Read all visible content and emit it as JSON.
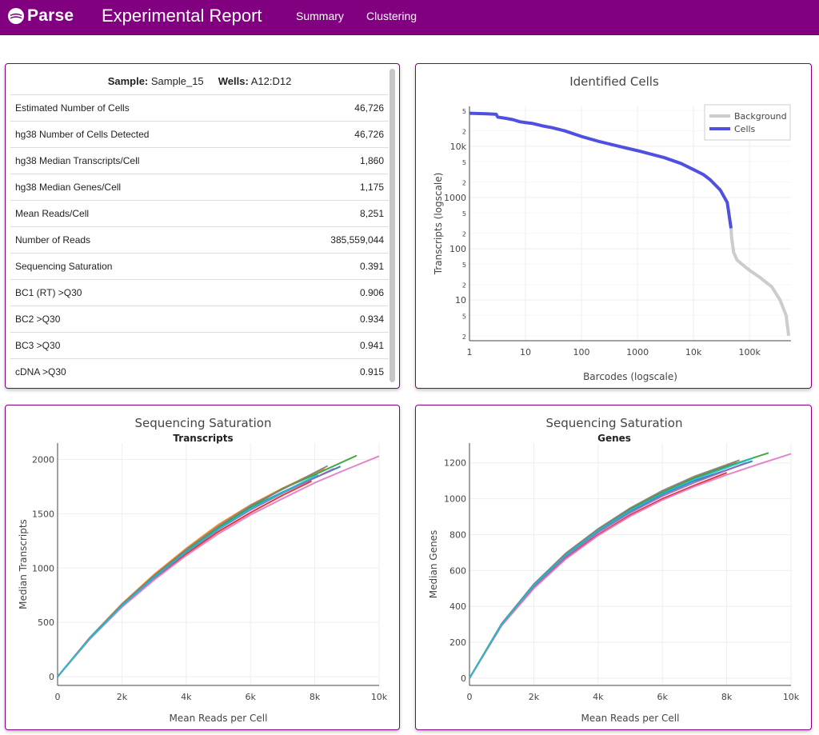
{
  "nav": {
    "logo_text": "Parse",
    "title": "Experimental Report",
    "links": [
      "Summary",
      "Clustering"
    ]
  },
  "summary": {
    "sample_label": "Sample:",
    "sample_value": "Sample_15",
    "wells_label": "Wells:",
    "wells_value": "A12:D12",
    "rows": [
      {
        "label": "Estimated Number of Cells",
        "value": "46,726"
      },
      {
        "label": "hg38 Number of Cells Detected",
        "value": "46,726"
      },
      {
        "label": "hg38 Median Transcripts/Cell",
        "value": "1,860"
      },
      {
        "label": "hg38 Median Genes/Cell",
        "value": "1,175"
      },
      {
        "label": "Mean Reads/Cell",
        "value": "8,251"
      },
      {
        "label": "Number of Reads",
        "value": "385,559,044"
      },
      {
        "label": "Sequencing Saturation",
        "value": "0.391"
      },
      {
        "label": "BC1 (RT) >Q30",
        "value": "0.906"
      },
      {
        "label": "BC2 >Q30",
        "value": "0.934"
      },
      {
        "label": "BC3 >Q30",
        "value": "0.941"
      },
      {
        "label": "cDNA >Q30",
        "value": "0.915"
      }
    ]
  },
  "chart_data": [
    {
      "type": "line",
      "title": "Identified Cells",
      "xlabel": "Barcodes (logscale)",
      "ylabel": "Transcripts (logscale)",
      "x_scale": "log",
      "y_scale": "log",
      "x_ticks": [
        "1",
        "10",
        "100",
        "1000",
        "10k",
        "100k"
      ],
      "y_ticks": [
        "2",
        "5",
        "10",
        "2",
        "5",
        "100",
        "2",
        "5",
        "1000",
        "2",
        "5",
        "10k",
        "2",
        "5"
      ],
      "legend": [
        "Background",
        "Cells"
      ],
      "legend_position": "top-right",
      "series": [
        {
          "name": "Cells",
          "color": "#5050e0",
          "x": [
            1,
            2,
            3,
            3.2,
            4.5,
            6,
            8,
            10,
            13,
            20,
            30,
            50,
            100,
            200,
            500,
            1000,
            3000,
            6000,
            10000,
            15000,
            20000,
            30000,
            40000,
            46726
          ],
          "y": [
            44000,
            43000,
            42000,
            37000,
            35000,
            33000,
            30000,
            29000,
            28000,
            25000,
            23000,
            20000,
            15500,
            12500,
            9800,
            8200,
            6000,
            4600,
            3500,
            2800,
            2200,
            1400,
            800,
            250
          ]
        },
        {
          "name": "Background",
          "color": "#cccccc",
          "x": [
            46726,
            48000,
            52000,
            60000,
            80000,
            100000,
            150000,
            250000,
            350000,
            450000,
            500000
          ],
          "y": [
            250,
            160,
            85,
            60,
            46,
            38,
            28,
            18,
            10,
            5,
            2
          ]
        }
      ]
    },
    {
      "type": "line",
      "title": "Sequencing Saturation",
      "subtitle": "Transcripts",
      "xlabel": "Mean Reads per Cell",
      "ylabel": "Median Transcripts",
      "x_ticks": [
        "0",
        "2k",
        "4k",
        "6k",
        "8k",
        "10k"
      ],
      "y_ticks": [
        "0",
        "500",
        "1000",
        "1500",
        "2000"
      ],
      "xlim": [
        0,
        10000
      ],
      "ylim": [
        -80,
        2150
      ],
      "series": [
        {
          "color": "#1f77b4",
          "x": [
            0,
            1000,
            2000,
            3000,
            4000,
            5000,
            6000,
            7000,
            8000,
            8800
          ],
          "y": [
            0,
            355,
            655,
            915,
            1150,
            1365,
            1555,
            1700,
            1830,
            1935
          ]
        },
        {
          "color": "#ff7f0e",
          "x": [
            0,
            1000,
            2000,
            3000,
            4000,
            5000,
            6000,
            7000,
            8000,
            8300
          ],
          "y": [
            0,
            360,
            670,
            940,
            1180,
            1400,
            1580,
            1735,
            1875,
            1915
          ]
        },
        {
          "color": "#2ca02c",
          "x": [
            0,
            1000,
            2000,
            3000,
            4000,
            5000,
            6000,
            7000,
            8000,
            9300
          ],
          "y": [
            0,
            355,
            660,
            925,
            1160,
            1375,
            1560,
            1730,
            1860,
            2035
          ]
        },
        {
          "color": "#d62728",
          "x": [
            0,
            1000,
            2000,
            3000,
            4000,
            5000,
            6000,
            7000,
            7900
          ],
          "y": [
            0,
            350,
            650,
            905,
            1130,
            1335,
            1510,
            1670,
            1800
          ]
        },
        {
          "color": "#9467bd",
          "x": [
            0,
            1000,
            2000,
            3000,
            4000,
            5000,
            6000,
            7000,
            8600
          ],
          "y": [
            0,
            352,
            652,
            910,
            1145,
            1355,
            1535,
            1690,
            1915
          ]
        },
        {
          "color": "#7f7f7f",
          "x": [
            0,
            1000,
            2000,
            3000,
            4000,
            5000,
            6000,
            7000,
            8400
          ],
          "y": [
            0,
            358,
            665,
            930,
            1170,
            1385,
            1575,
            1725,
            1940
          ]
        },
        {
          "color": "#e377c2",
          "x": [
            0,
            1000,
            2000,
            3000,
            4000,
            5000,
            6000,
            7000,
            8000,
            9000,
            10000
          ],
          "y": [
            0,
            345,
            640,
            890,
            1115,
            1315,
            1490,
            1640,
            1785,
            1910,
            2030
          ]
        },
        {
          "color": "#17becf",
          "x": [
            0,
            1000,
            2000,
            3000,
            4000,
            5000,
            6000,
            7000,
            8100
          ],
          "y": [
            0,
            353,
            655,
            913,
            1148,
            1360,
            1548,
            1697,
            1860
          ]
        }
      ]
    },
    {
      "type": "line",
      "title": "Sequencing Saturation",
      "subtitle": "Genes",
      "xlabel": "Mean Reads per Cell",
      "ylabel": "Median Genes",
      "x_ticks": [
        "0",
        "2k",
        "4k",
        "6k",
        "8k",
        "10k"
      ],
      "y_ticks": [
        "0",
        "200",
        "400",
        "600",
        "800",
        "1000",
        "1200"
      ],
      "xlim": [
        0,
        10000
      ],
      "ylim": [
        -40,
        1310
      ],
      "series": [
        {
          "color": "#1f77b4",
          "x": [
            0,
            1000,
            2000,
            3000,
            4000,
            5000,
            6000,
            7000,
            8000,
            8800
          ],
          "y": [
            0,
            300,
            515,
            685,
            820,
            930,
            1025,
            1100,
            1160,
            1210
          ]
        },
        {
          "color": "#ff7f0e",
          "x": [
            0,
            1000,
            2000,
            3000,
            4000,
            5000,
            6000,
            7000,
            8300
          ],
          "y": [
            0,
            303,
            522,
            695,
            830,
            945,
            1040,
            1120,
            1205
          ]
        },
        {
          "color": "#2ca02c",
          "x": [
            0,
            1000,
            2000,
            3000,
            4000,
            5000,
            6000,
            7000,
            8000,
            9300
          ],
          "y": [
            0,
            302,
            520,
            690,
            825,
            940,
            1035,
            1115,
            1180,
            1255
          ]
        },
        {
          "color": "#d62728",
          "x": [
            0,
            1000,
            2000,
            3000,
            4000,
            5000,
            6000,
            7000,
            8000
          ],
          "y": [
            0,
            295,
            505,
            670,
            800,
            910,
            1000,
            1075,
            1145
          ]
        },
        {
          "color": "#9467bd",
          "x": [
            0,
            1000,
            2000,
            3000,
            4000,
            5000,
            6000,
            7000,
            8600
          ],
          "y": [
            0,
            298,
            510,
            678,
            812,
            922,
            1015,
            1090,
            1200
          ]
        },
        {
          "color": "#7f7f7f",
          "x": [
            0,
            1000,
            2000,
            3000,
            4000,
            5000,
            6000,
            7000,
            8400
          ],
          "y": [
            0,
            304,
            524,
            697,
            832,
            948,
            1045,
            1125,
            1215
          ]
        },
        {
          "color": "#e377c2",
          "x": [
            0,
            1000,
            2000,
            3000,
            4000,
            5000,
            6000,
            7000,
            8000,
            9000,
            10000
          ],
          "y": [
            0,
            293,
            500,
            665,
            795,
            903,
            993,
            1068,
            1133,
            1193,
            1250
          ]
        },
        {
          "color": "#17becf",
          "x": [
            0,
            1000,
            2000,
            3000,
            4000,
            5000,
            6000,
            7000,
            8800
          ],
          "y": [
            0,
            300,
            517,
            687,
            822,
            934,
            1030,
            1108,
            1225
          ]
        }
      ]
    }
  ]
}
